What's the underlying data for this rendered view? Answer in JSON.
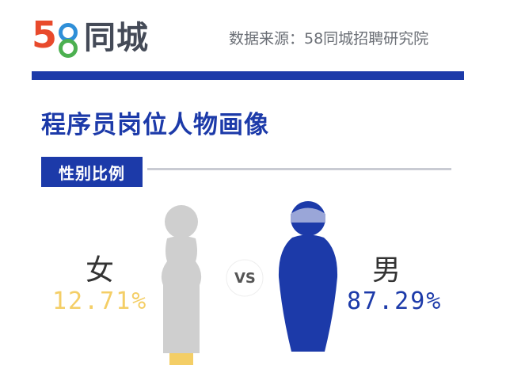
{
  "header": {
    "logo_text": "同城",
    "logo_digits": "58",
    "source": "数据来源：58同城招聘研究院"
  },
  "title": "程序员岗位人物画像",
  "section_tag": "性别比例",
  "vs_text": "VS",
  "colors": {
    "accent": "#1c3aa9",
    "female": "#f4ce66",
    "female_figure": "#cfcfcf",
    "male": "#1c3aa9",
    "male_head": "#9aa6d8"
  },
  "chart_data": {
    "type": "pie",
    "title": "",
    "categories": [
      "女",
      "男"
    ],
    "values": [
      12.71,
      87.29
    ],
    "value_labels": [
      "12.71%",
      "87.29%"
    ]
  }
}
